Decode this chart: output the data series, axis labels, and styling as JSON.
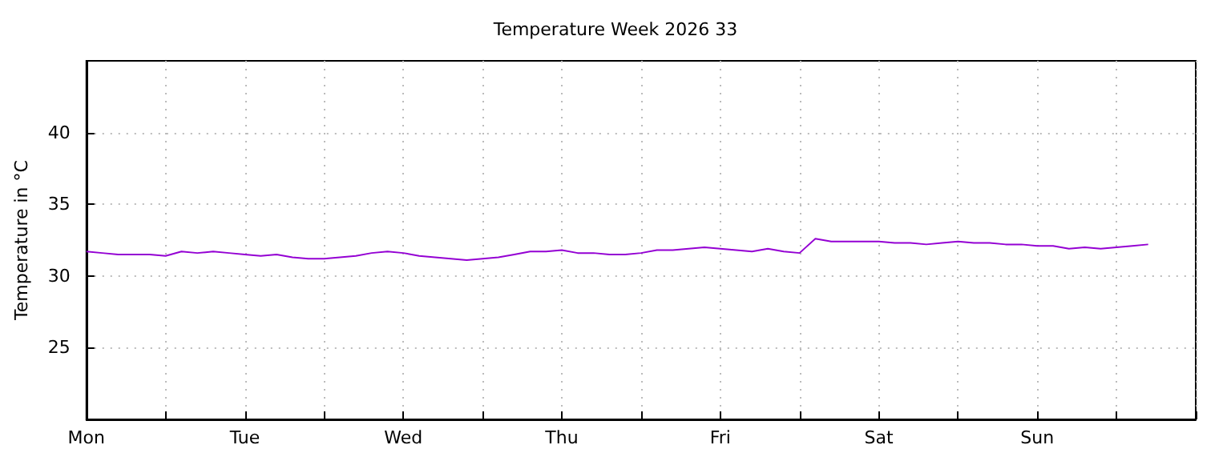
{
  "chart_data": {
    "type": "line",
    "title": "Temperature Week 2026 33",
    "ylabel": "Temperature in °C",
    "categories": [
      "Mon",
      null,
      null,
      null,
      null,
      null,
      null,
      null,
      null,
      null,
      "Tue",
      null,
      null,
      null,
      null,
      null,
      null,
      null,
      null,
      null,
      "Wed",
      null,
      null,
      null,
      null,
      null,
      null,
      null,
      null,
      null,
      "Thu",
      null,
      null,
      null,
      null,
      null,
      null,
      null,
      null,
      null,
      "Fri",
      null,
      null,
      null,
      null,
      null,
      null,
      null,
      null,
      null,
      "Sat",
      null,
      null,
      null,
      null,
      null,
      null,
      null,
      null,
      null,
      "Sun",
      null,
      null,
      null,
      null,
      null,
      null,
      null,
      null,
      null,
      null
    ],
    "series": [
      {
        "color": "#9400d3",
        "values": [
          31.7,
          31.6,
          31.5,
          31.5,
          31.5,
          31.4,
          31.7,
          31.6,
          31.7,
          31.6,
          31.5,
          31.4,
          31.5,
          31.3,
          31.2,
          31.2,
          31.3,
          31.4,
          31.6,
          31.7,
          31.6,
          31.4,
          31.3,
          31.2,
          31.1,
          31.2,
          31.3,
          31.5,
          31.7,
          31.7,
          31.8,
          31.6,
          31.6,
          31.5,
          31.5,
          31.6,
          31.8,
          31.8,
          31.9,
          32.0,
          31.9,
          31.8,
          31.7,
          31.9,
          31.7,
          31.6,
          32.6,
          32.4,
          32.4,
          32.4,
          32.4,
          32.3,
          32.3,
          32.2,
          32.3,
          32.4,
          32.3,
          32.3,
          32.2,
          32.2,
          32.1,
          32.1,
          31.9,
          32.0,
          31.9,
          32.0,
          32.1,
          32.2,
          null,
          null,
          null
        ]
      }
    ],
    "ylim": [
      20,
      45
    ],
    "yticks": [
      25,
      30,
      35,
      40
    ],
    "grid": true,
    "marker": "none",
    "line_style": "solid"
  }
}
